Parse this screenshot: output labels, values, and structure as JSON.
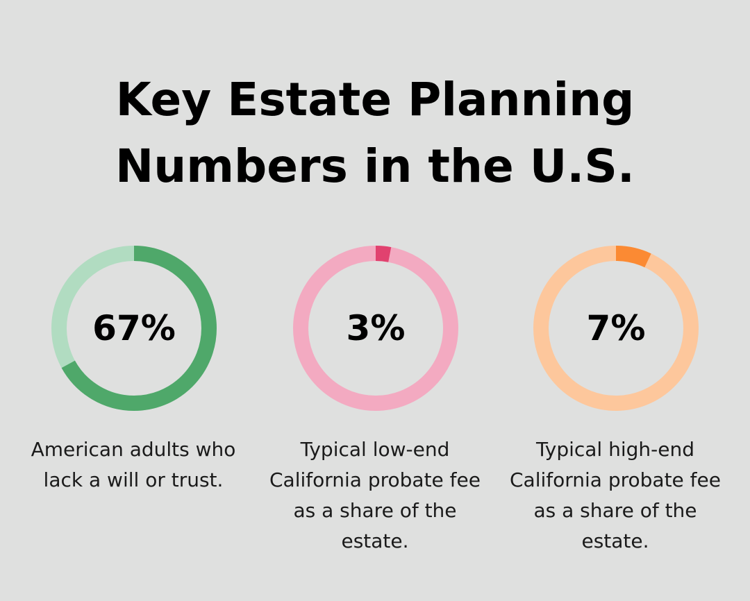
{
  "title_lines": [
    "Key Estate Planning",
    "Numbers in the U.S."
  ],
  "chart_data": {
    "type": "pie",
    "title": "Key Estate Planning Numbers in the U.S.",
    "items": [
      {
        "value": 67,
        "label": "67%",
        "caption": "American adults who lack a will or trust.",
        "color": "#4fa86a",
        "track_color": "#b1dcc1"
      },
      {
        "value": 3,
        "label": "3%",
        "caption": "Typical low-end California probate fee as a share of the estate.",
        "color": "#e1426f",
        "track_color": "#f3aac1"
      },
      {
        "value": 7,
        "label": "7%",
        "caption": "Typical high-end California probate fee as a share of the estate.",
        "color": "#fb8a33",
        "track_color": "#fdc79c"
      }
    ]
  }
}
